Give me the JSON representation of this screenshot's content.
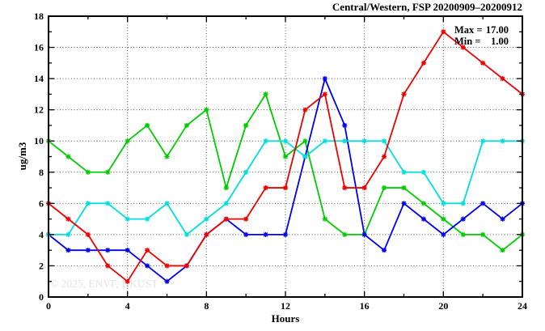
{
  "title": "Central/Western, FSP 20200909–20200912",
  "annotation": {
    "max_label": "Max =",
    "max_value": "17.00",
    "min_label": "Min =",
    "min_value": "1.00"
  },
  "watermark": "© 2025, ENVF, HKUST",
  "colors": {
    "axis": "#000000",
    "grid": "#555555",
    "watermark": "#e3e3e3",
    "background": "#ffffff"
  },
  "chart_data": {
    "type": "line",
    "title": "Central/Western, FSP 20200909–20200912",
    "xlabel": "Hours",
    "ylabel": "ug/m3",
    "xlim": [
      0,
      24
    ],
    "ylim": [
      0,
      18
    ],
    "x_major_ticks": [
      0,
      4,
      8,
      12,
      16,
      20,
      24
    ],
    "x_minor_ticks": [
      2,
      6,
      10,
      14,
      18,
      22
    ],
    "y_major_ticks": [
      0,
      2,
      4,
      6,
      8,
      10,
      12,
      14,
      16,
      18
    ],
    "y_minor_ticks": [
      1,
      3,
      5,
      7,
      9,
      11,
      13,
      15,
      17
    ],
    "grid_x": [
      4,
      8,
      12,
      16,
      20
    ],
    "grid_y": [
      2,
      4,
      6,
      8,
      10,
      12,
      14,
      16
    ],
    "grid": "dotted",
    "legend_position": "none",
    "max": 17.0,
    "min": 1.0,
    "x": [
      0,
      1,
      2,
      3,
      4,
      5,
      6,
      7,
      8,
      9,
      10,
      11,
      12,
      13,
      14,
      15,
      16,
      17,
      18,
      19,
      20,
      21,
      22,
      23,
      24
    ],
    "series": [
      {
        "name": "green",
        "color": "#00cc00",
        "values": [
          10,
          9,
          8,
          8,
          10,
          11,
          9,
          11,
          12,
          7,
          11,
          13,
          9,
          10,
          5,
          4,
          4,
          7,
          7,
          6,
          5,
          4,
          4,
          3,
          4
        ]
      },
      {
        "name": "blue",
        "color": "#0000ee",
        "values": [
          4,
          3,
          3,
          3,
          3,
          2,
          1,
          2,
          4,
          5,
          4,
          4,
          4,
          9,
          14,
          11,
          4,
          3,
          6,
          5,
          4,
          5,
          6,
          5,
          6
        ]
      },
      {
        "name": "cyan",
        "color": "#00dede",
        "values": [
          4,
          4,
          6,
          6,
          5,
          5,
          6,
          4,
          5,
          6,
          8,
          10,
          10,
          9,
          10,
          10,
          10,
          10,
          8,
          8,
          6,
          6,
          10,
          10,
          10
        ]
      },
      {
        "name": "red",
        "color": "#ee0000",
        "values": [
          6,
          5,
          4,
          2,
          1,
          3,
          2,
          2,
          4,
          5,
          5,
          7,
          7,
          12,
          13,
          7,
          7,
          9,
          13,
          15,
          17,
          16,
          15,
          14,
          13
        ]
      }
    ]
  }
}
